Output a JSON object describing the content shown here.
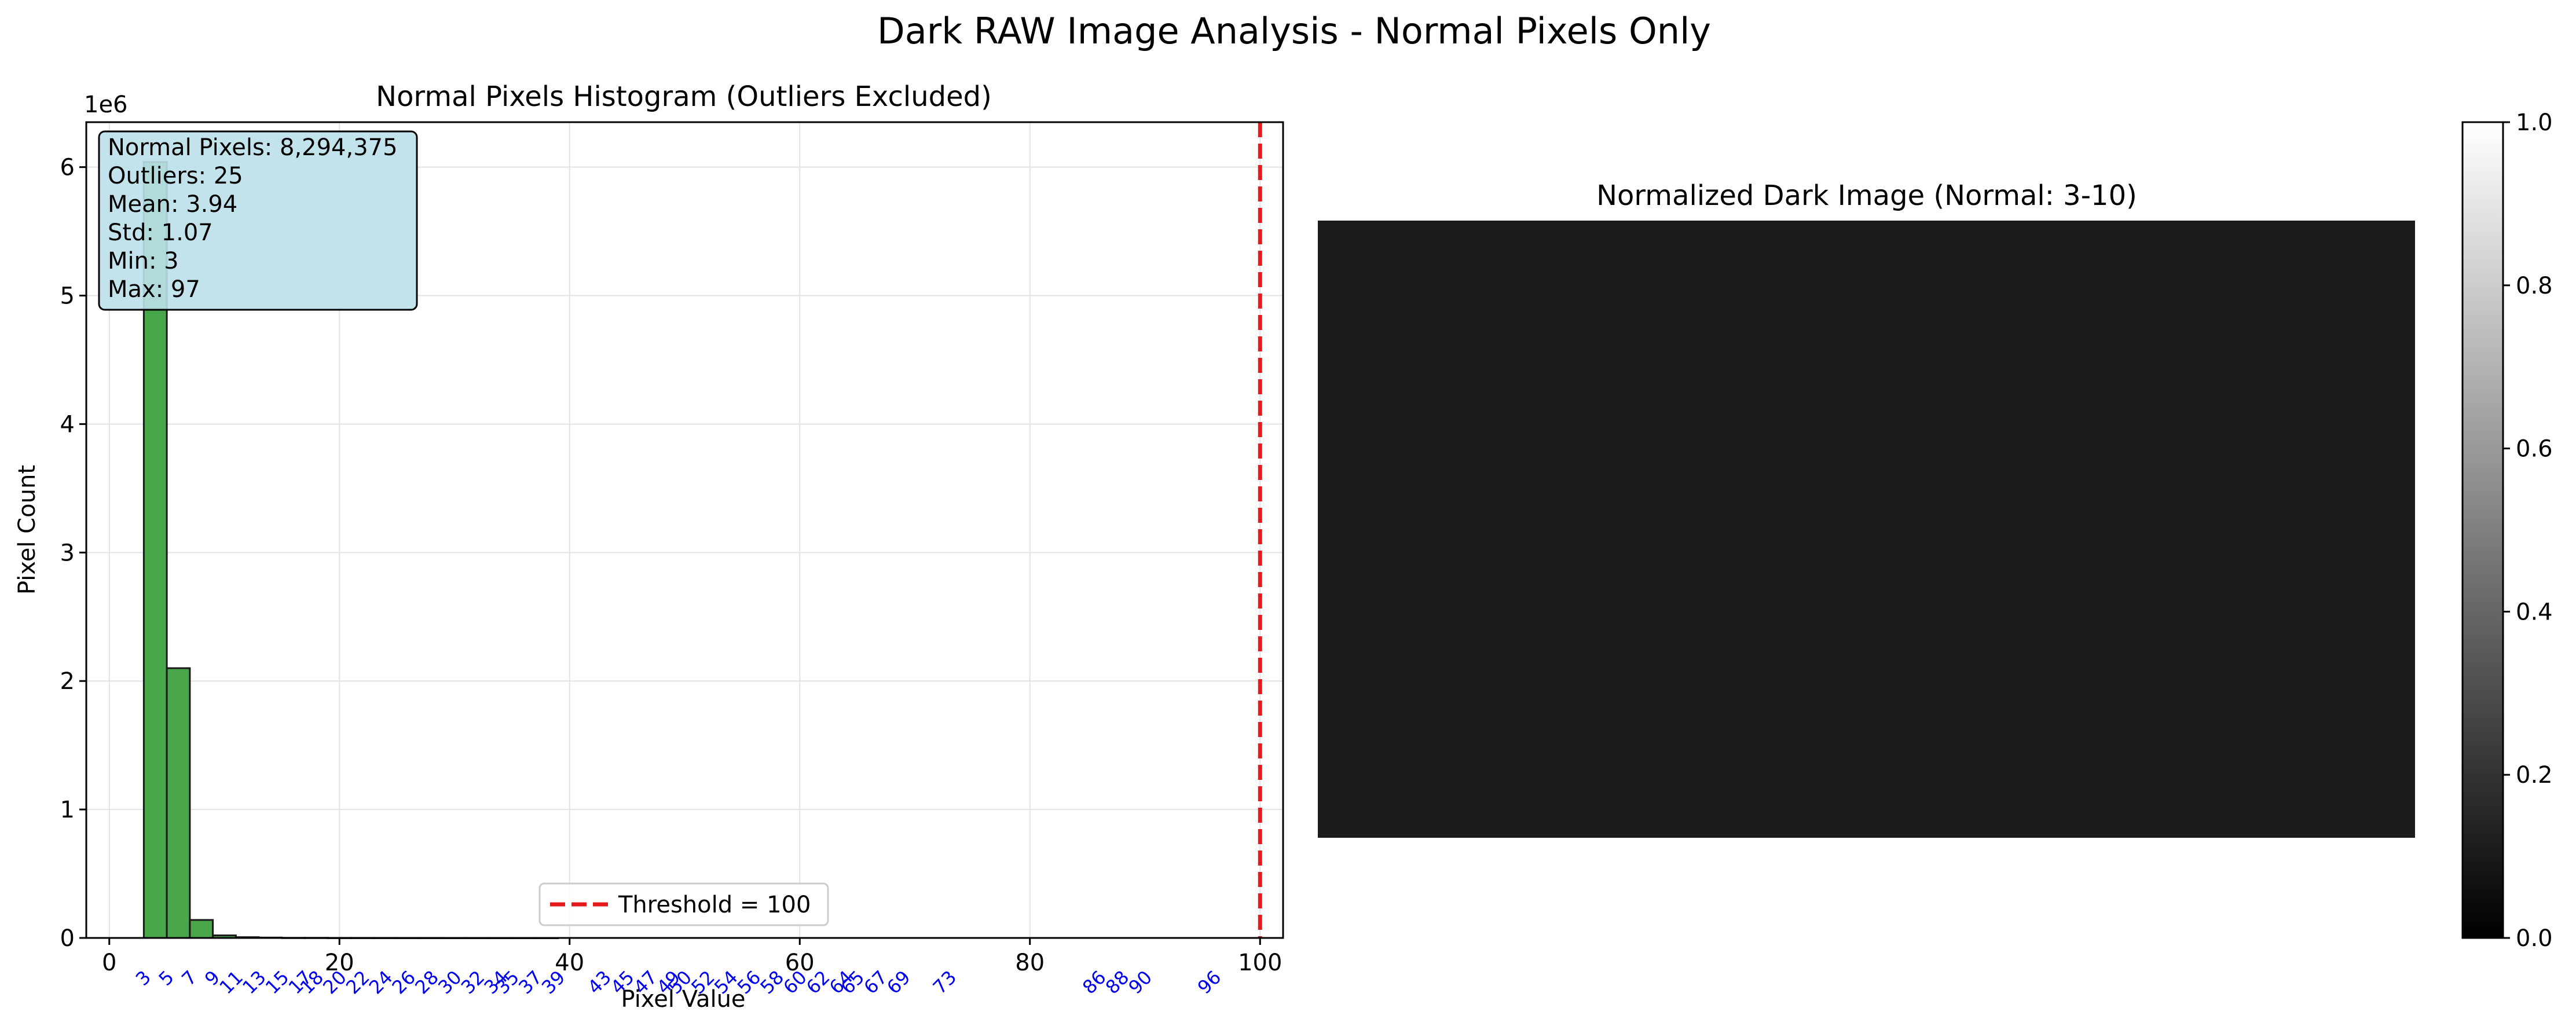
{
  "figure": {
    "title": "Dark RAW Image Analysis - Normal Pixels Only"
  },
  "chart_data": [
    {
      "type": "bar",
      "title": "Normal Pixels Histogram (Outliers Excluded)",
      "xlabel": "Pixel Value",
      "ylabel": "Pixel Count",
      "y_multiplier_label": "1e6",
      "xlim": [
        -2,
        102
      ],
      "ylim": [
        0,
        6.35
      ],
      "xticks": [
        0,
        20,
        40,
        60,
        80,
        100
      ],
      "yticks": [
        0,
        1,
        2,
        3,
        4,
        5,
        6
      ],
      "grid": true,
      "bar_color": "#4aa64a",
      "bin_edges": [
        3,
        5,
        7,
        9,
        11,
        13,
        15,
        17,
        19,
        21,
        23,
        25,
        27,
        29,
        31,
        33,
        35,
        37,
        39,
        41,
        43,
        45,
        47,
        49,
        51,
        53,
        55,
        57,
        59,
        61,
        63,
        65,
        67,
        69,
        71,
        73,
        75,
        77,
        79,
        81,
        83,
        85,
        87,
        89,
        91,
        93,
        95,
        97
      ],
      "series": [
        {
          "values_millions": [
            6.04,
            2.1,
            0.14,
            0.02,
            0.006,
            0.003,
            0.001,
            0.001,
            0.0005,
            0.0004,
            0.0003,
            0.0002,
            0.0002,
            0.0001,
            0.0001,
            0.0001,
            0.0001,
            0.0001,
            0,
            0,
            0,
            0,
            0,
            0,
            0,
            0,
            0,
            0,
            0,
            0,
            0,
            0,
            0,
            0,
            0,
            0,
            0,
            0,
            0,
            0,
            0,
            0,
            0,
            0,
            0,
            0,
            0
          ]
        }
      ],
      "threshold": {
        "value": 100,
        "color": "#e41a1c",
        "label": "Threshold = 100"
      },
      "legend_position": "lower-center",
      "stats_box": {
        "lines": [
          "Normal Pixels: 8,294,375",
          "Outliers: 25",
          "Mean: 3.94",
          "Std: 1.07",
          "Min: 3",
          "Max: 97"
        ],
        "background": "#bde0ea"
      },
      "value_labels": {
        "color": "#0000ee",
        "values": [
          "3",
          "5",
          "7",
          "9",
          "11",
          "13",
          "15",
          "17",
          "18",
          "20",
          "22",
          "24",
          "26",
          "28",
          "30",
          "32",
          "34",
          "35",
          "37",
          "39",
          "43",
          "45",
          "47",
          "49",
          "50",
          "52",
          "54",
          "56",
          "58",
          "60",
          "62",
          "64",
          "65",
          "67",
          "69",
          "73",
          "86",
          "88",
          "90",
          "96"
        ]
      }
    },
    {
      "type": "heatmap",
      "title": "Normalized Dark Image (Normal: 3-10)",
      "colormap": "gray",
      "image_color": "#1b1b1b",
      "colorbar": {
        "range": [
          0,
          1
        ],
        "ticks": [
          "0.0",
          "0.2",
          "0.4",
          "0.6",
          "0.8",
          "1.0"
        ]
      }
    }
  ]
}
